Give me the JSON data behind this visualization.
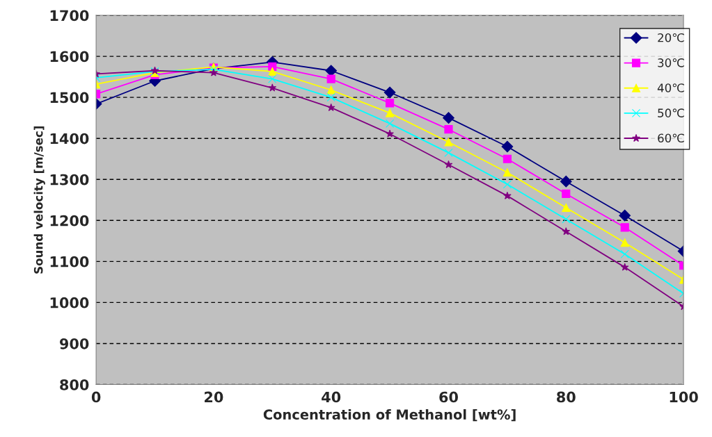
{
  "chart_data": {
    "type": "line",
    "xlabel": "Concentration of Methanol [wt%]",
    "ylabel": "Sound velocity [m/sec]",
    "x": [
      0,
      10,
      20,
      30,
      40,
      50,
      60,
      70,
      80,
      90,
      100
    ],
    "xlim": [
      0,
      100
    ],
    "xticks": [
      0,
      20,
      40,
      60,
      80,
      100
    ],
    "ylim": [
      800,
      1700
    ],
    "yticks": [
      800,
      900,
      1000,
      1100,
      1200,
      1300,
      1400,
      1500,
      1600,
      1700
    ],
    "grid": "y",
    "legend": "top right",
    "line_style": "solid",
    "series": [
      {
        "name": "20℃",
        "color": "#000080",
        "marker": "diamond",
        "values": [
          1484,
          1540,
          1570,
          1586,
          1565,
          1512,
          1450,
          1380,
          1295,
          1212,
          1125
        ]
      },
      {
        "name": "30℃",
        "color": "#ff00ff",
        "marker": "square",
        "values": [
          1508,
          1555,
          1572,
          1575,
          1545,
          1486,
          1422,
          1350,
          1265,
          1183,
          1090
        ]
      },
      {
        "name": "40℃",
        "color": "#ffff00",
        "marker": "triangle",
        "values": [
          1532,
          1560,
          1574,
          1563,
          1518,
          1462,
          1391,
          1317,
          1231,
          1146,
          1056
        ]
      },
      {
        "name": "50℃",
        "color": "#00ffff",
        "marker": "cross",
        "values": [
          1548,
          1563,
          1568,
          1545,
          1500,
          1436,
          1365,
          1288,
          1203,
          1118,
          1022
        ]
      },
      {
        "name": "60℃",
        "color": "#800080",
        "marker": "star",
        "values": [
          1557,
          1565,
          1560,
          1523,
          1475,
          1411,
          1336,
          1260,
          1173,
          1086,
          990
        ]
      }
    ]
  }
}
